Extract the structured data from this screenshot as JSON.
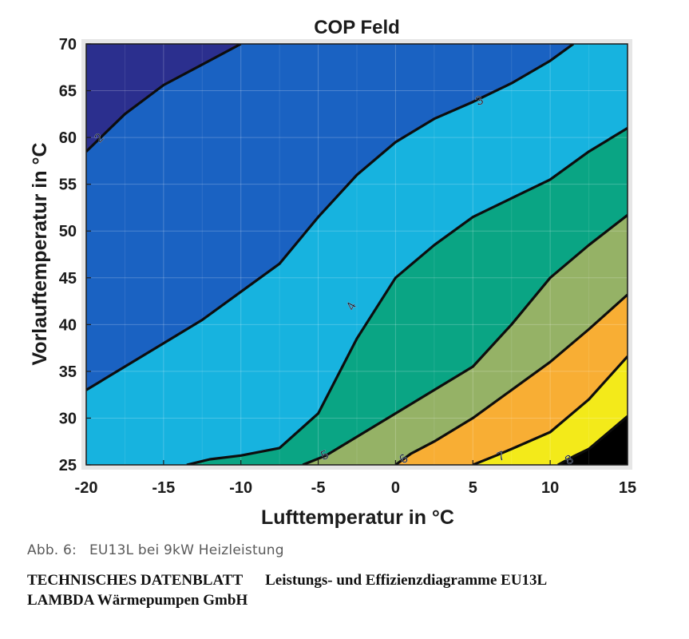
{
  "chart_data": {
    "type": "contour",
    "title": "COP Feld",
    "xlabel": "Lufttemperatur in °C",
    "ylabel": "Vorlauftemperatur in °C",
    "xlim": [
      -20,
      15
    ],
    "ylim": [
      25,
      70
    ],
    "x_ticks": [
      -20,
      -15,
      -10,
      -5,
      0,
      5,
      10,
      15
    ],
    "y_ticks": [
      25,
      30,
      35,
      40,
      45,
      50,
      55,
      60,
      65,
      70
    ],
    "grid": true,
    "fill_colors": [
      "#2b2f8e",
      "#1a62c2",
      "#17b3df",
      "#0aa584",
      "#95b266",
      "#f8ae34",
      "#f3ea1a"
    ],
    "contours": [
      {
        "level": 2,
        "label": "2",
        "label_at": [
          -19.2,
          60.0
        ],
        "points": [
          [
            -20,
            58.5
          ],
          [
            -17.5,
            62.5
          ],
          [
            -15,
            65.6
          ],
          [
            -12.5,
            67.8
          ],
          [
            -10,
            70
          ]
        ]
      },
      {
        "level": 3,
        "label": "3",
        "label_at": [
          5.4,
          64.0
        ],
        "points": [
          [
            -20,
            33.0
          ],
          [
            -17.5,
            35.5
          ],
          [
            -15,
            38.0
          ],
          [
            -12.5,
            40.5
          ],
          [
            -10,
            43.5
          ],
          [
            -7.5,
            46.5
          ],
          [
            -5,
            51.5
          ],
          [
            -2.5,
            56.0
          ],
          [
            0,
            59.5
          ],
          [
            2.5,
            62.0
          ],
          [
            5,
            63.8
          ],
          [
            7.5,
            65.8
          ],
          [
            10,
            68.2
          ],
          [
            11.5,
            70
          ]
        ]
      },
      {
        "level": 4,
        "label": "4",
        "label_at": [
          -2.9,
          42.0
        ],
        "points": [
          [
            -13.5,
            25
          ],
          [
            -12,
            25.6
          ],
          [
            -10,
            26.0
          ],
          [
            -7.5,
            26.8
          ],
          [
            -5,
            30.5
          ],
          [
            -2.5,
            38.5
          ],
          [
            0,
            45.0
          ],
          [
            2.5,
            48.5
          ],
          [
            5,
            51.5
          ],
          [
            7.5,
            53.5
          ],
          [
            10,
            55.5
          ],
          [
            12.5,
            58.5
          ],
          [
            15,
            61.0
          ]
        ]
      },
      {
        "level": 5,
        "label": "5",
        "label_at": [
          -4.6,
          26.1
        ],
        "points": [
          [
            -6,
            25
          ],
          [
            -4.5,
            26.0
          ],
          [
            -2.5,
            28.0
          ],
          [
            0,
            30.5
          ],
          [
            2.5,
            33.0
          ],
          [
            5,
            35.5
          ],
          [
            7.5,
            40.0
          ],
          [
            10,
            45.0
          ],
          [
            12.5,
            48.5
          ],
          [
            15,
            51.7
          ]
        ]
      },
      {
        "level": 6,
        "label": "6",
        "label_at": [
          0.5,
          25.7
        ],
        "points": [
          [
            0,
            25
          ],
          [
            1,
            26.2
          ],
          [
            2.5,
            27.5
          ],
          [
            5,
            30.0
          ],
          [
            7.5,
            33.0
          ],
          [
            10,
            36.0
          ],
          [
            12.5,
            39.5
          ],
          [
            15,
            43.2
          ]
        ]
      },
      {
        "level": 7,
        "label": "7",
        "label_at": [
          6.8,
          26.0
        ],
        "points": [
          [
            5,
            25
          ],
          [
            6.5,
            26.0
          ],
          [
            7.5,
            26.7
          ],
          [
            10,
            28.5
          ],
          [
            12.5,
            32.0
          ],
          [
            15,
            36.6
          ]
        ]
      },
      {
        "level": 8,
        "label": "8",
        "label_at": [
          11.2,
          25.6
        ],
        "points": [
          [
            10.5,
            25
          ],
          [
            11.5,
            25.9
          ],
          [
            12.5,
            26.7
          ],
          [
            15,
            30.2
          ]
        ]
      }
    ]
  },
  "caption": {
    "figure": "Abb. 6:",
    "text": "EU13L bei 9kW Heizleistung"
  },
  "footer": {
    "doc_type": "TECHNISCHES DATENBLATT",
    "doc_title": "Leistungs- und Effizienzdiagramme EU13L",
    "company": "LAMBDA Wärmepumpen GmbH"
  }
}
